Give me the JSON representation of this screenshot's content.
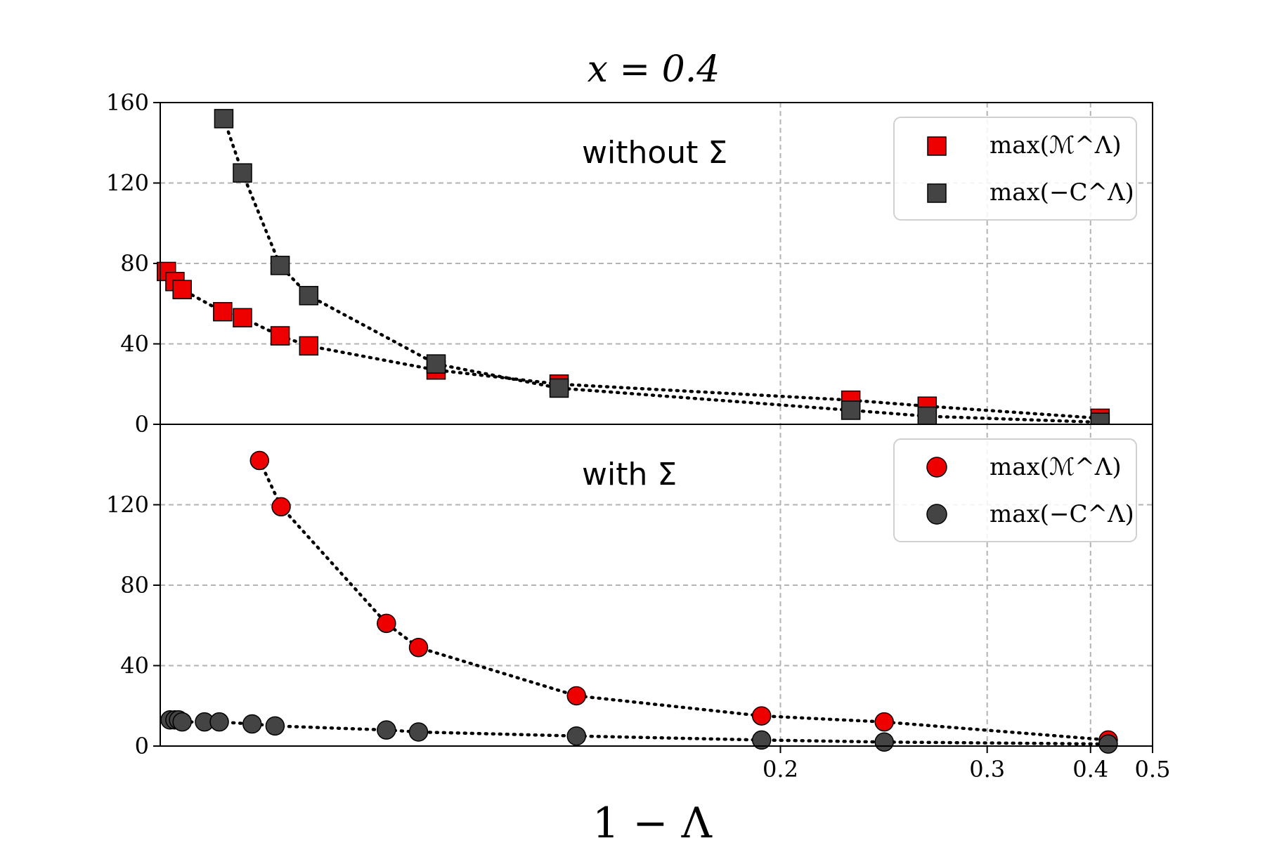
{
  "chart_data": [
    {
      "type": "scatter",
      "title": "x = 0.4",
      "annotation": "without Σ",
      "xscale": "reciprocal",
      "xlim": [
        0.1,
        0.5
      ],
      "ylim": [
        0,
        160
      ],
      "yticks": [
        0,
        40,
        80,
        120,
        160
      ],
      "grid": true,
      "legend_position": "top-right",
      "series": [
        {
          "name": "max(ℳ^Λ)",
          "marker": "square",
          "color": "#ee0000",
          "x": [
            0.1005,
            0.1012,
            0.1018,
            0.1053,
            0.1071,
            0.1107,
            0.1136,
            0.1286,
            0.1474,
            0.2256,
            0.262,
            0.4127
          ],
          "y": [
            76,
            71,
            67,
            56,
            53,
            44,
            39,
            27,
            20,
            12,
            9,
            3
          ]
        },
        {
          "name": "max(−C^Λ)",
          "marker": "square",
          "color": "#444444",
          "x": [
            0.1054,
            0.1071,
            0.1107,
            0.1136,
            0.1286,
            0.1474,
            0.2256,
            0.262,
            0.4127
          ],
          "y": [
            152,
            125,
            79,
            64,
            30,
            18,
            7,
            4,
            1
          ]
        }
      ]
    },
    {
      "type": "scatter",
      "annotation": "with Σ",
      "xscale": "reciprocal",
      "xlim": [
        0.1,
        0.5
      ],
      "ylim": [
        0,
        160
      ],
      "yticks": [
        0,
        40,
        80,
        120
      ],
      "xticks": [
        0.2,
        0.3,
        0.4,
        0.5
      ],
      "xlabel": "1 − Λ",
      "grid": true,
      "legend_position": "top-right",
      "series": [
        {
          "name": "max(ℳ^Λ)",
          "marker": "circle",
          "color": "#ee0000",
          "x": [
            0.1087,
            0.1108,
            0.1223,
            0.1263,
            0.1505,
            0.1941,
            0.2402,
            0.4242
          ],
          "y": [
            142,
            119,
            61,
            49,
            25,
            15,
            12,
            3
          ]
        },
        {
          "name": "max(−C^Λ)",
          "marker": "circle",
          "color": "#444444",
          "x": [
            0.1008,
            0.1012,
            0.1015,
            0.1018,
            0.1037,
            0.105,
            0.108,
            0.1102,
            0.1223,
            0.1263,
            0.1505,
            0.1941,
            0.2402,
            0.4242
          ],
          "y": [
            13,
            13,
            13,
            12,
            12,
            12,
            11,
            10,
            8,
            7,
            5,
            3,
            2,
            1
          ]
        }
      ]
    }
  ]
}
